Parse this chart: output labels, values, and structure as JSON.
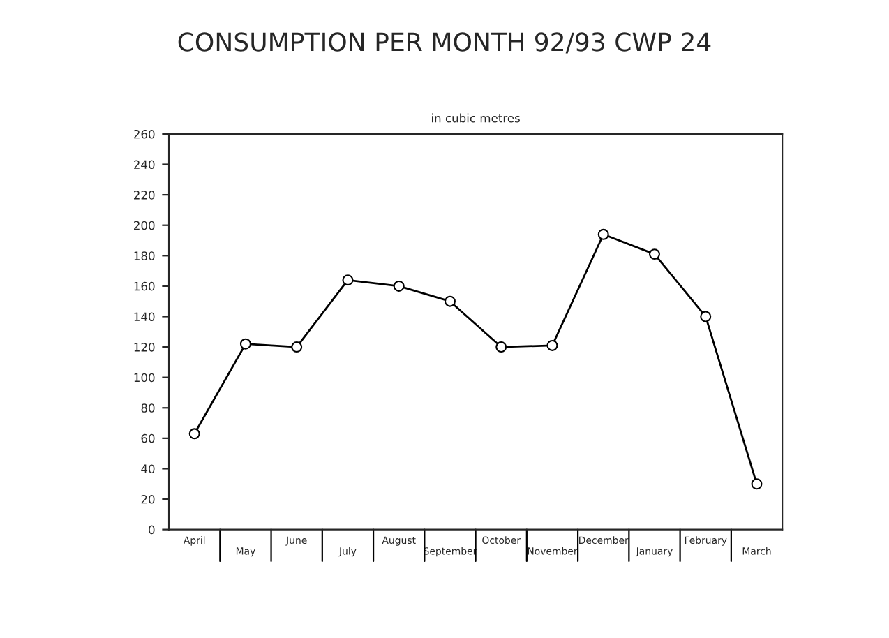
{
  "chart_data": {
    "type": "line",
    "title": "CONSUMPTION PER MONTH 92/93 CWP 24",
    "subtitle": "in cubic metres",
    "categories": [
      "April",
      "May",
      "June",
      "July",
      "August",
      "September",
      "October",
      "November",
      "December",
      "January",
      "February",
      "March"
    ],
    "series": [
      {
        "color": "#000000",
        "values": [
          63,
          122,
          120,
          164,
          160,
          150,
          120,
          121,
          194,
          181,
          140,
          30
        ]
      }
    ],
    "ylim": [
      0,
      260
    ],
    "yticks": [
      0,
      20,
      40,
      60,
      80,
      100,
      120,
      140,
      160,
      180,
      200,
      220,
      240,
      260
    ],
    "marker": "circle",
    "line_style": "solid",
    "grid": false,
    "legend": false
  }
}
